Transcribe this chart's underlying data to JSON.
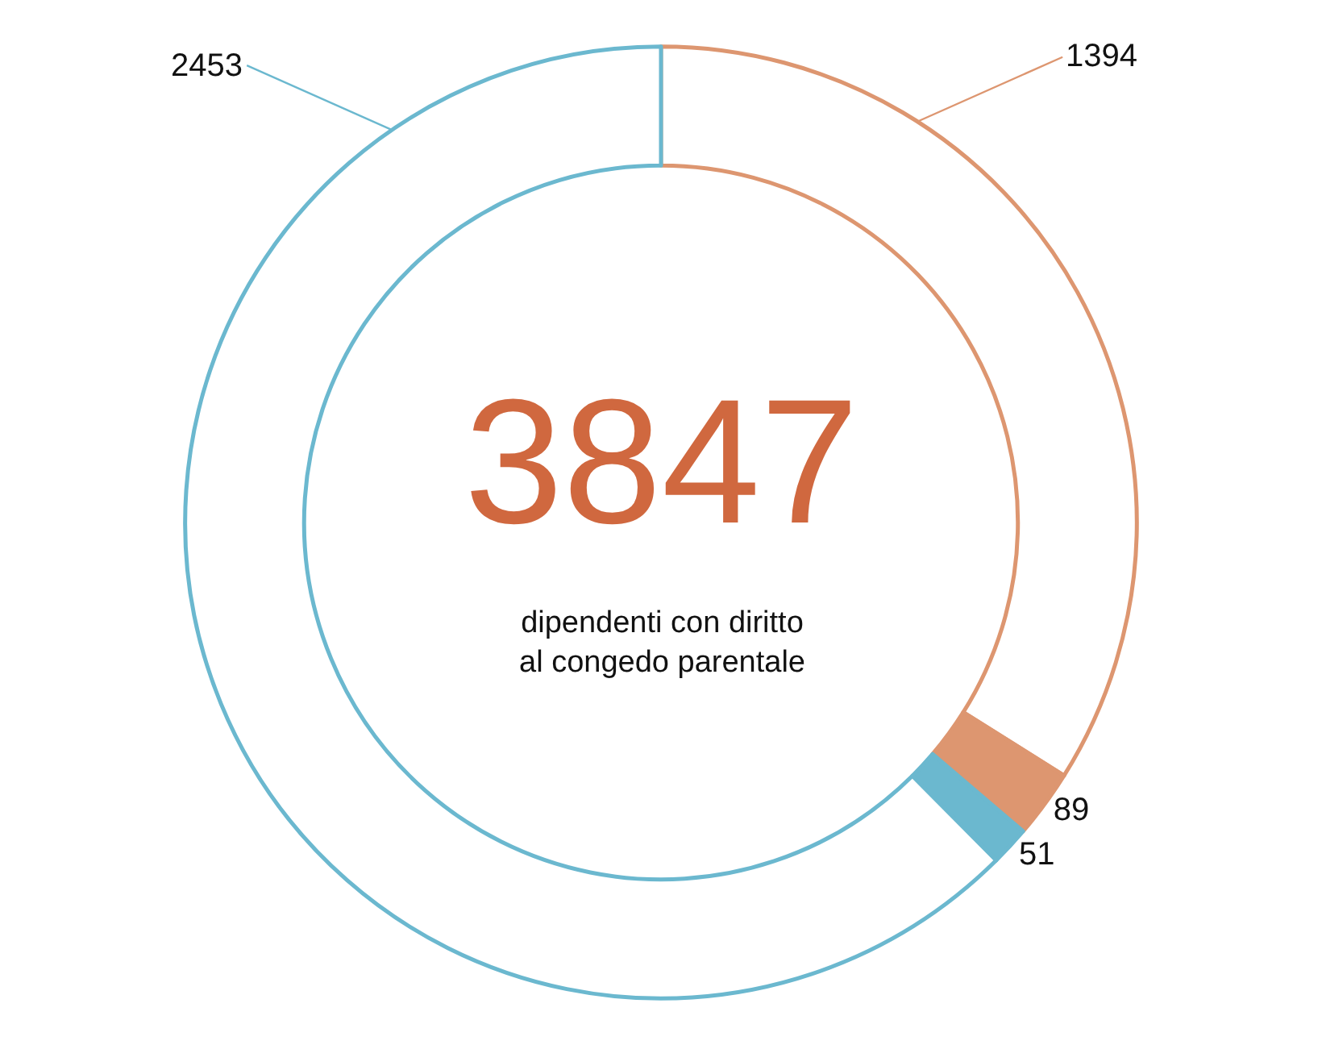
{
  "chart_data": {
    "type": "donut",
    "title": "3847",
    "subtitle": "dipendenti con diritto\nal congedo parentale",
    "categories": [
      null,
      null,
      null,
      null
    ],
    "values": [
      1305,
      89,
      51,
      2402
    ],
    "colors": [
      "#dd9670",
      "#dd9670",
      "#6bb8cf",
      "#6bb8cf"
    ],
    "value_labels": [
      null,
      "89",
      "51",
      null
    ],
    "annotations": [
      "1394",
      "2453"
    ],
    "legend": false
  }
}
